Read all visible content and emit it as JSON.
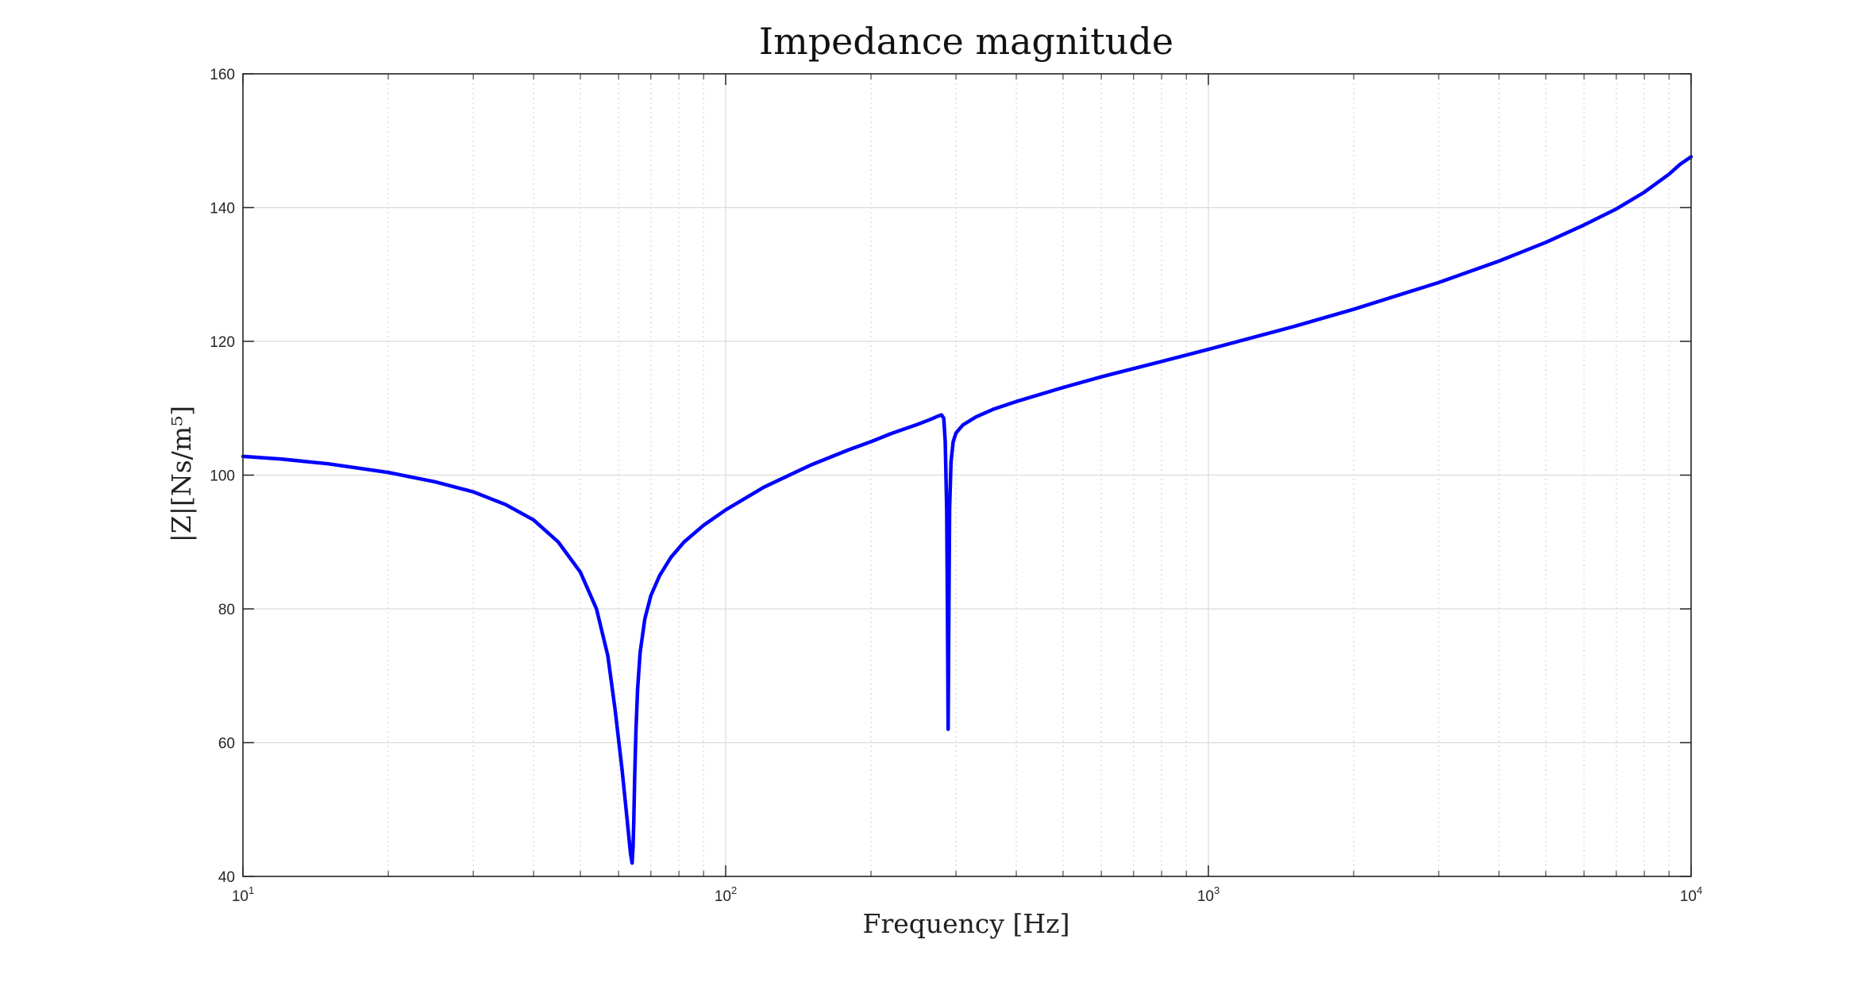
{
  "chart_data": {
    "type": "line",
    "title": "Impedance magnitude",
    "xlabel": "Frequency [Hz]",
    "ylabel": "|Z|[Ns/m⁵]",
    "xscale": "log",
    "xlim": [
      10,
      10000
    ],
    "ylim": [
      40,
      160
    ],
    "grid": true,
    "legend": "none",
    "x_ticks": [
      {
        "base": "10",
        "exp": "1",
        "value": 10
      },
      {
        "base": "10",
        "exp": "2",
        "value": 100
      },
      {
        "base": "10",
        "exp": "3",
        "value": 1000
      },
      {
        "base": "10",
        "exp": "4",
        "value": 10000
      }
    ],
    "y_ticks": [
      "40",
      "60",
      "80",
      "100",
      "120",
      "140",
      "160"
    ],
    "series": [
      {
        "color": "#0000ff",
        "x": [
          10,
          12,
          15,
          20,
          25,
          30,
          35,
          40,
          45,
          50,
          54,
          57,
          59,
          61,
          62,
          63,
          63.5,
          64,
          64.3,
          64.5,
          64.8,
          65.2,
          65.7,
          66.5,
          68,
          70,
          73,
          77,
          82,
          90,
          100,
          120,
          150,
          180,
          200,
          220,
          250,
          265,
          275,
          280,
          283,
          285,
          287,
          288,
          289,
          290,
          291,
          293,
          296,
          300,
          310,
          330,
          360,
          400,
          500,
          600,
          800,
          1000,
          1500,
          2000,
          3000,
          4000,
          5000,
          6000,
          7000,
          8000,
          9000,
          9500,
          10000
        ],
        "y": [
          102.8,
          102.4,
          101.7,
          100.4,
          99.0,
          97.5,
          95.6,
          93.3,
          90.0,
          85.5,
          80.0,
          73.0,
          65.0,
          56.0,
          51.0,
          46.0,
          43.5,
          42.0,
          44.5,
          48.0,
          55.0,
          62.0,
          68.0,
          73.5,
          78.5,
          82.0,
          85.0,
          87.7,
          90.0,
          92.5,
          94.8,
          98.2,
          101.5,
          103.8,
          105.0,
          106.2,
          107.6,
          108.3,
          108.8,
          109.0,
          108.5,
          105.0,
          95.0,
          80.0,
          62.0,
          80.0,
          95.0,
          102.0,
          105.0,
          106.3,
          107.5,
          108.7,
          109.9,
          111.0,
          113.1,
          114.7,
          117.0,
          118.8,
          122.2,
          124.8,
          128.8,
          132.0,
          134.8,
          137.4,
          139.8,
          142.3,
          145.0,
          146.5,
          147.6
        ]
      }
    ]
  }
}
